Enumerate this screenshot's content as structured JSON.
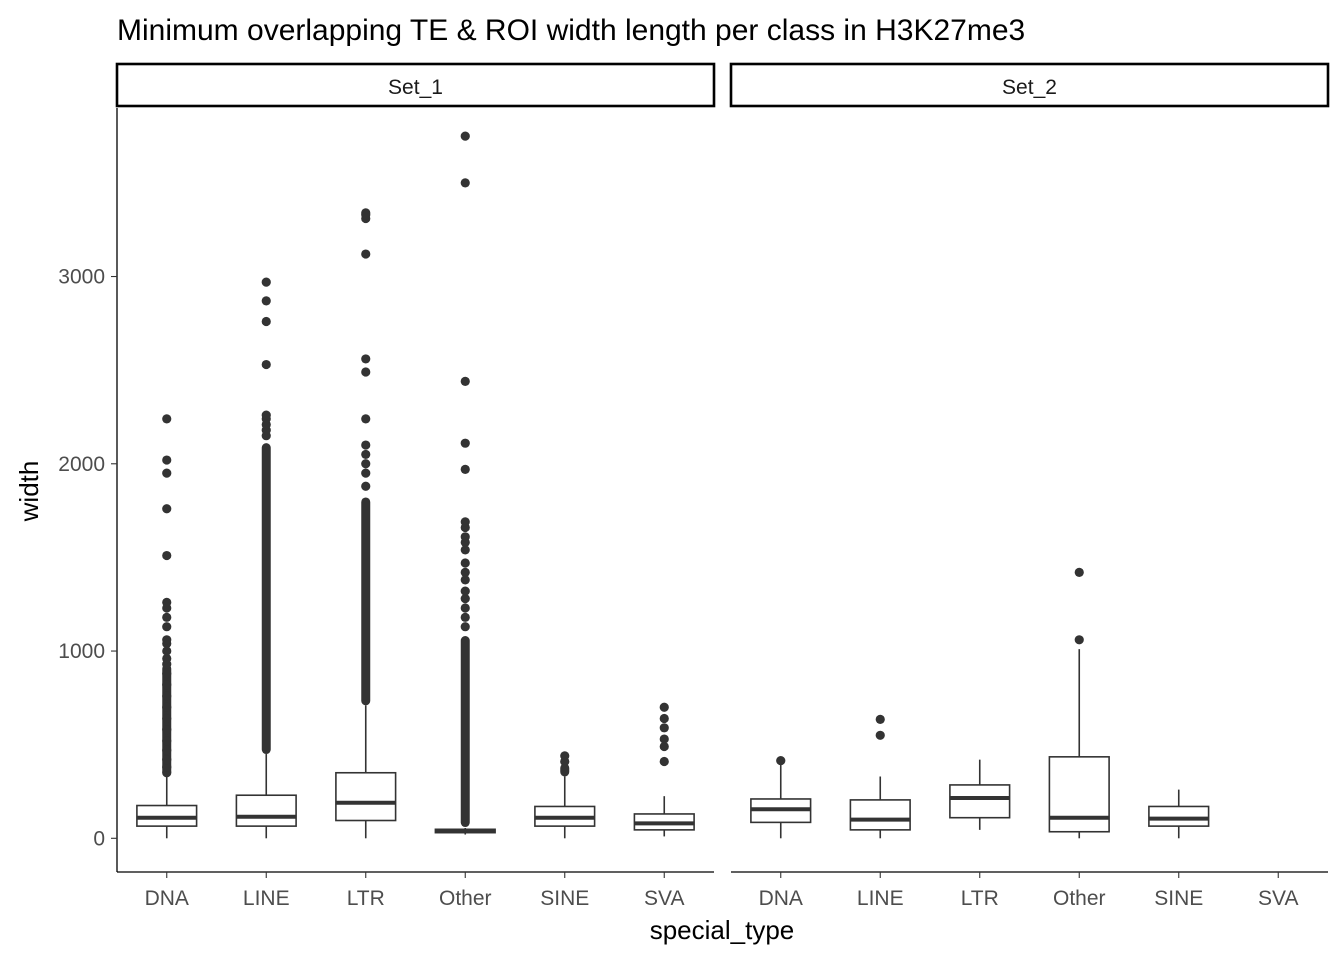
{
  "chart_data": {
    "type": "boxplot",
    "title": "Minimum overlapping TE & ROI width length per class in H3K27me3",
    "xlabel": "special_type",
    "ylabel": "width",
    "ylim": [
      -180,
      3900
    ],
    "yticks": [
      0,
      1000,
      2000,
      3000
    ],
    "categories": [
      "DNA",
      "LINE",
      "LTR",
      "Other",
      "SINE",
      "SVA"
    ],
    "facets": [
      {
        "label": "Set_1",
        "boxes": [
          {
            "category": "DNA",
            "q1": 65,
            "median": 110,
            "q3": 175,
            "whisker_low": 0,
            "whisker_high": 330,
            "outlier_band": [
              330,
              930
            ],
            "outliers": [
              350,
              380,
              420,
              470,
              520,
              580,
              640,
              700,
              760,
              820,
              880,
              930,
              960,
              1000,
              1040,
              1060,
              1130,
              1180,
              1230,
              1260,
              1510,
              1760,
              1950,
              2020,
              2240
            ]
          },
          {
            "category": "LINE",
            "q1": 65,
            "median": 115,
            "q3": 230,
            "whisker_low": 0,
            "whisker_high": 450,
            "outlier_band": [
              450,
              2110
            ],
            "outliers": [
              2150,
              2180,
              2210,
              2240,
              2260,
              2530,
              2760,
              2870,
              2970
            ]
          },
          {
            "category": "LTR",
            "q1": 95,
            "median": 190,
            "q3": 350,
            "whisker_low": 0,
            "whisker_high": 710,
            "outlier_band": [
              710,
              1820
            ],
            "outliers": [
              1880,
              1950,
              2000,
              2050,
              2100,
              2240,
              2490,
              2560,
              3120,
              3310,
              3330,
              3340
            ]
          },
          {
            "category": "Other",
            "q1": 30,
            "median": 40,
            "q3": 48,
            "whisker_low": 20,
            "whisker_high": 55,
            "outlier_band": [
              60,
              1080
            ],
            "outliers": [
              1130,
              1180,
              1230,
              1280,
              1320,
              1380,
              1420,
              1470,
              1540,
              1580,
              1610,
              1660,
              1690,
              1970,
              2110,
              2440,
              3500,
              3750
            ]
          },
          {
            "category": "SINE",
            "q1": 65,
            "median": 110,
            "q3": 170,
            "whisker_low": 0,
            "whisker_high": 330,
            "outlier_band": [
              330,
              400
            ],
            "outliers": [
              410,
              440
            ]
          },
          {
            "category": "SVA",
            "q1": 45,
            "median": 80,
            "q3": 130,
            "whisker_low": 10,
            "whisker_high": 225,
            "outlier_band": [],
            "outliers": [
              410,
              490,
              530,
              590,
              640,
              700
            ]
          }
        ]
      },
      {
        "label": "Set_2",
        "boxes": [
          {
            "category": "DNA",
            "q1": 85,
            "median": 155,
            "q3": 210,
            "whisker_low": 0,
            "whisker_high": 400,
            "outlier_band": [],
            "outliers": [
              415
            ]
          },
          {
            "category": "LINE",
            "q1": 45,
            "median": 100,
            "q3": 205,
            "whisker_low": 0,
            "whisker_high": 330,
            "outlier_band": [],
            "outliers": [
              550,
              635
            ]
          },
          {
            "category": "LTR",
            "q1": 110,
            "median": 215,
            "q3": 285,
            "whisker_low": 45,
            "whisker_high": 420,
            "outlier_band": [],
            "outliers": []
          },
          {
            "category": "Other",
            "q1": 35,
            "median": 110,
            "q3": 435,
            "whisker_low": 0,
            "whisker_high": 1010,
            "outlier_band": [],
            "outliers": [
              1060,
              1420
            ]
          },
          {
            "category": "SINE",
            "q1": 65,
            "median": 105,
            "q3": 170,
            "whisker_low": 0,
            "whisker_high": 260,
            "outlier_band": [],
            "outliers": []
          }
        ]
      }
    ]
  }
}
